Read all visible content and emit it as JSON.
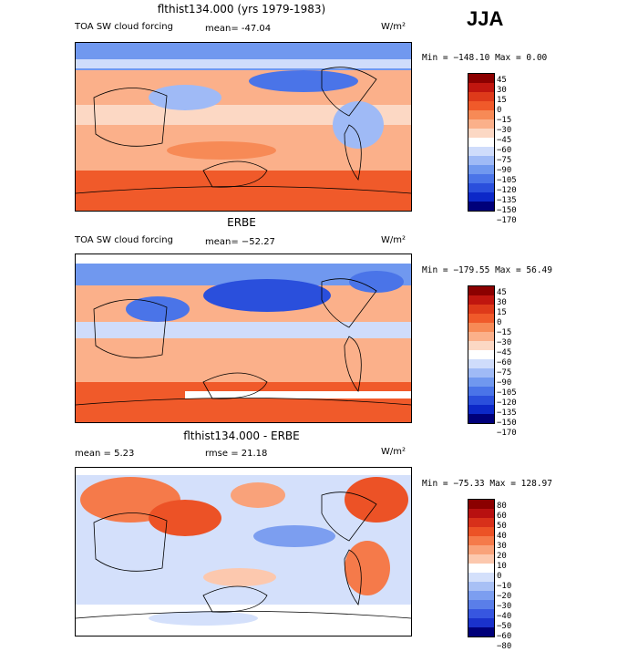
{
  "season": "JJA",
  "panels": [
    {
      "title": "flthist134.000 (yrs 1979-1983)",
      "label": "TOA SW cloud forcing",
      "stat": "mean= -47.04",
      "units": "W/m²",
      "range": "Min = −148.10 Max =    0.00",
      "levels": [
        "45",
        "30",
        "15",
        "0",
        "−15",
        "−30",
        "−45",
        "−60",
        "−75",
        "−90",
        "−105",
        "−120",
        "−135",
        "−150",
        "−170"
      ],
      "colors": [
        "#8b0000",
        "#c0160f",
        "#de3a1a",
        "#f05a2a",
        "#f78a56",
        "#fbb08a",
        "#fcd8c4",
        "#ffffff",
        "#cfdcfb",
        "#9fbaf6",
        "#7098ef",
        "#4a74e8",
        "#2a4fdc",
        "#0c28c8",
        "#00007a"
      ]
    },
    {
      "title": "ERBE",
      "label": "TOA SW cloud forcing",
      "stat": "mean= −52.27",
      "units": "W/m²",
      "range": "Min = −179.55 Max =  56.49",
      "levels": [
        "45",
        "30",
        "15",
        "0",
        "−15",
        "−30",
        "−45",
        "−60",
        "−75",
        "−90",
        "−105",
        "−120",
        "−135",
        "−150",
        "−170"
      ],
      "colors": [
        "#8b0000",
        "#c0160f",
        "#de3a1a",
        "#f05a2a",
        "#f78a56",
        "#fbb08a",
        "#fcd8c4",
        "#ffffff",
        "#cfdcfb",
        "#9fbaf6",
        "#7098ef",
        "#4a74e8",
        "#2a4fdc",
        "#0c28c8",
        "#00007a"
      ]
    },
    {
      "title": "flthist134.000 - ERBE",
      "label": "mean =    5.23",
      "stat": "rmse =  21.18",
      "units": "W/m²",
      "range": "Min = −75.33 Max = 128.97",
      "levels": [
        "80",
        "60",
        "50",
        "40",
        "30",
        "20",
        "10",
        "0",
        "−10",
        "−20",
        "−30",
        "−40",
        "−50",
        "−60",
        "−80"
      ],
      "colors": [
        "#8b0000",
        "#b81010",
        "#d8301a",
        "#ec5226",
        "#f57a4a",
        "#f9a27a",
        "#fcc8ae",
        "#ffffff",
        "#d4e0fb",
        "#a8c0f5",
        "#7c9ef0",
        "#5a7ee9",
        "#3756e0",
        "#1a32cc",
        "#00007a"
      ]
    }
  ],
  "chart_data": [
    {
      "type": "heatmap",
      "title": "flthist134.000 (yrs 1979-1983) — TOA SW cloud forcing (JJA)",
      "units": "W/m²",
      "mean": -47.04,
      "min": -148.1,
      "max": 0.0,
      "contour_levels": [
        45,
        30,
        15,
        0,
        -15,
        -30,
        -45,
        -60,
        -75,
        -90,
        -105,
        -120,
        -135,
        -150,
        -170
      ]
    },
    {
      "type": "heatmap",
      "title": "ERBE — TOA SW cloud forcing (JJA)",
      "units": "W/m²",
      "mean": -52.27,
      "min": -179.55,
      "max": 56.49,
      "contour_levels": [
        45,
        30,
        15,
        0,
        -15,
        -30,
        -45,
        -60,
        -75,
        -90,
        -105,
        -120,
        -135,
        -150,
        -170
      ]
    },
    {
      "type": "heatmap",
      "title": "flthist134.000 - ERBE (JJA)",
      "units": "W/m²",
      "mean": 5.23,
      "rmse": 21.18,
      "min": -75.33,
      "max": 128.97,
      "contour_levels": [
        80,
        60,
        50,
        40,
        30,
        20,
        10,
        0,
        -10,
        -20,
        -30,
        -40,
        -50,
        -60,
        -80
      ]
    }
  ]
}
